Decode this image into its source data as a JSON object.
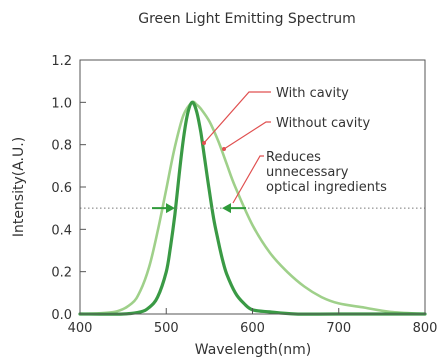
{
  "chart_data": {
    "type": "line",
    "title": "Green Light Emitting Spectrum",
    "xlabel": "Wavelength(nm)",
    "ylabel": "Intensity(A.U.)",
    "xlim": [
      400,
      800
    ],
    "ylim": [
      0,
      1.2
    ],
    "x_ticks": [
      "400",
      "500",
      "600",
      "700",
      "800"
    ],
    "y_ticks": [
      "0.0",
      "0.2",
      "0.4",
      "0.6",
      "0.8",
      "1.0",
      "1.2"
    ],
    "grid": false,
    "reference_line": {
      "y": 0.5,
      "style": "dotted"
    },
    "series": [
      {
        "name": "With cavity",
        "color": "#3a9a45",
        "x": [
          400,
          450,
          470,
          480,
          490,
          500,
          505,
          510,
          515,
          520,
          525,
          530,
          535,
          540,
          545,
          550,
          555,
          560,
          565,
          570,
          580,
          590,
          600,
          620,
          650,
          700,
          800
        ],
        "y": [
          0.0,
          0.0,
          0.01,
          0.03,
          0.08,
          0.2,
          0.32,
          0.47,
          0.66,
          0.83,
          0.95,
          1.0,
          0.96,
          0.86,
          0.72,
          0.58,
          0.45,
          0.35,
          0.26,
          0.19,
          0.1,
          0.05,
          0.02,
          0.01,
          0.0,
          0.0,
          0.0
        ]
      },
      {
        "name": "Without cavity",
        "color": "#9fd08a",
        "x": [
          400,
          440,
          460,
          470,
          480,
          490,
          500,
          510,
          520,
          530,
          535,
          540,
          550,
          560,
          570,
          580,
          600,
          620,
          640,
          660,
          680,
          700,
          730,
          760,
          800
        ],
        "y": [
          0.0,
          0.01,
          0.05,
          0.11,
          0.22,
          0.39,
          0.59,
          0.79,
          0.94,
          1.0,
          0.99,
          0.97,
          0.91,
          0.82,
          0.71,
          0.6,
          0.42,
          0.29,
          0.2,
          0.13,
          0.08,
          0.05,
          0.03,
          0.01,
          0.0
        ]
      }
    ],
    "annotations": [
      {
        "text": "With cavity",
        "color": "#e05050"
      },
      {
        "text": "Without cavity",
        "color": "#e05050"
      },
      {
        "lines": [
          "Reduces",
          "unnecessary",
          "optical ingredients"
        ],
        "color": "#e05050"
      }
    ]
  }
}
